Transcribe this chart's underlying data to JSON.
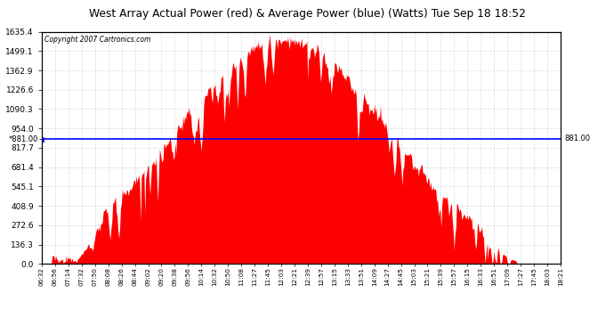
{
  "title": "West Array Actual Power (red) & Average Power (blue) (Watts) Tue Sep 18 18:52",
  "copyright": "Copyright 2007 Cartronics.com",
  "avg_power": 881.0,
  "y_max": 1635.4,
  "y_ticks": [
    0.0,
    136.3,
    272.6,
    408.9,
    545.1,
    681.4,
    817.7,
    954.0,
    1090.3,
    1226.6,
    1362.9,
    1499.1,
    1635.4
  ],
  "x_labels": [
    "06:32",
    "06:56",
    "07:14",
    "07:32",
    "07:50",
    "08:08",
    "08:26",
    "08:44",
    "09:02",
    "09:20",
    "09:38",
    "09:56",
    "10:14",
    "10:32",
    "10:50",
    "11:08",
    "11:27",
    "11:45",
    "12:03",
    "12:21",
    "12:39",
    "12:57",
    "13:15",
    "13:33",
    "13:51",
    "14:09",
    "14:27",
    "14:45",
    "15:03",
    "15:21",
    "15:39",
    "15:57",
    "16:15",
    "16:33",
    "16:51",
    "17:09",
    "17:27",
    "17:45",
    "18:03",
    "18:21"
  ],
  "bg_color": "#ffffff",
  "grid_color": "#cccccc",
  "fill_color": "#ff0000",
  "line_color": "#0000ff",
  "title_bg": "#e8e8e8",
  "n_labels": 40
}
